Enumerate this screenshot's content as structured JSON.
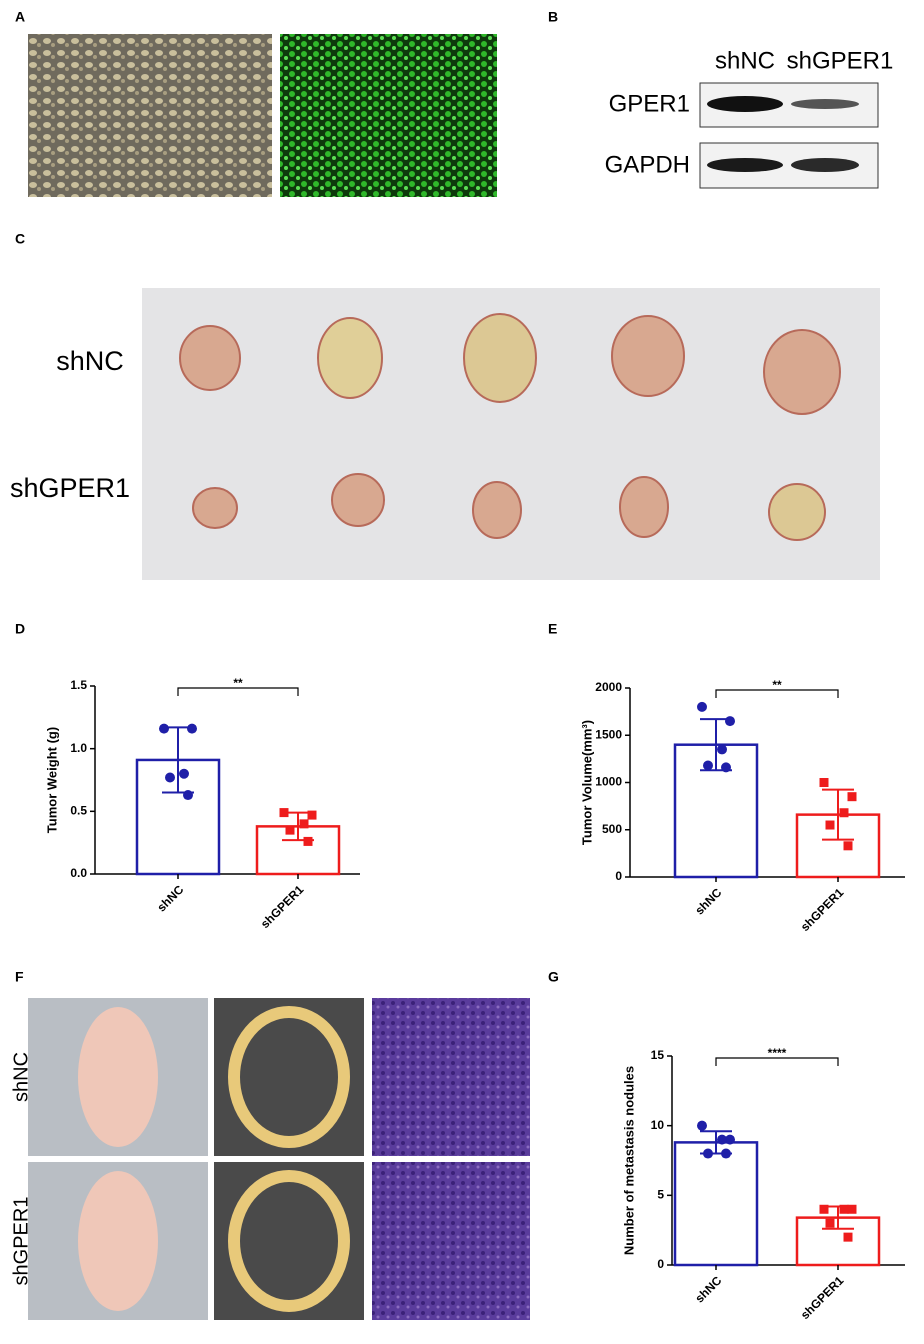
{
  "panel_labels": [
    "A",
    "B",
    "C",
    "D",
    "E",
    "F",
    "G"
  ],
  "blot": {
    "lanes": [
      "shNC",
      "shGPER1"
    ],
    "rows": [
      "GPER1",
      "GAPDH"
    ]
  },
  "tumors": {
    "rows": [
      "shNC",
      "shGPER1"
    ]
  },
  "metastasis": {
    "rows": [
      "shNC",
      "shGPER1"
    ]
  },
  "chart_data": [
    {
      "type": "bar",
      "ylabel": "Tumor Weight (g)",
      "categories": [
        "shNC",
        "shGPER1"
      ],
      "values": [
        0.91,
        0.38
      ],
      "errors": [
        0.26,
        0.11
      ],
      "points": [
        [
          1.16,
          1.16,
          0.8,
          0.77,
          0.63
        ],
        [
          0.49,
          0.47,
          0.4,
          0.35,
          0.26
        ]
      ],
      "colors": [
        "#1f1fa8",
        "#ee1c1c"
      ],
      "markers": [
        "circle",
        "square"
      ],
      "ylim": [
        0,
        1.5
      ],
      "yticks": [
        {
          "value": 0,
          "label": "0.0"
        },
        0.5,
        {
          "value": 1,
          "label": "1.0"
        },
        1.5
      ],
      "annotation": "**"
    },
    {
      "type": "bar",
      "ylabel": "Tumor Volume(mm³)",
      "categories": [
        "shNC",
        "shGPER1"
      ],
      "values": [
        1400,
        660
      ],
      "errors": [
        270,
        265
      ],
      "points": [
        [
          1800,
          1650,
          1350,
          1180,
          1160
        ],
        [
          1000,
          850,
          680,
          550,
          330
        ]
      ],
      "colors": [
        "#1f1fa8",
        "#ee1c1c"
      ],
      "markers": [
        "circle",
        "square"
      ],
      "ylim": [
        0,
        2000
      ],
      "yticks": [
        0,
        500,
        1000,
        1500,
        2000
      ],
      "annotation": "**"
    },
    {
      "type": "bar",
      "ylabel": "Number of metastasis nodules",
      "categories": [
        "shNC",
        "shGPER1"
      ],
      "values": [
        8.8,
        3.4
      ],
      "errors": [
        0.8,
        0.8
      ],
      "points": [
        [
          10,
          9,
          9,
          8,
          8
        ],
        [
          4,
          4,
          4,
          3,
          2
        ]
      ],
      "colors": [
        "#1f1fa8",
        "#ee1c1c"
      ],
      "markers": [
        "circle",
        "square"
      ],
      "ylim": [
        0,
        15
      ],
      "yticks": [
        0,
        5,
        10,
        15
      ],
      "annotation": "****"
    }
  ]
}
